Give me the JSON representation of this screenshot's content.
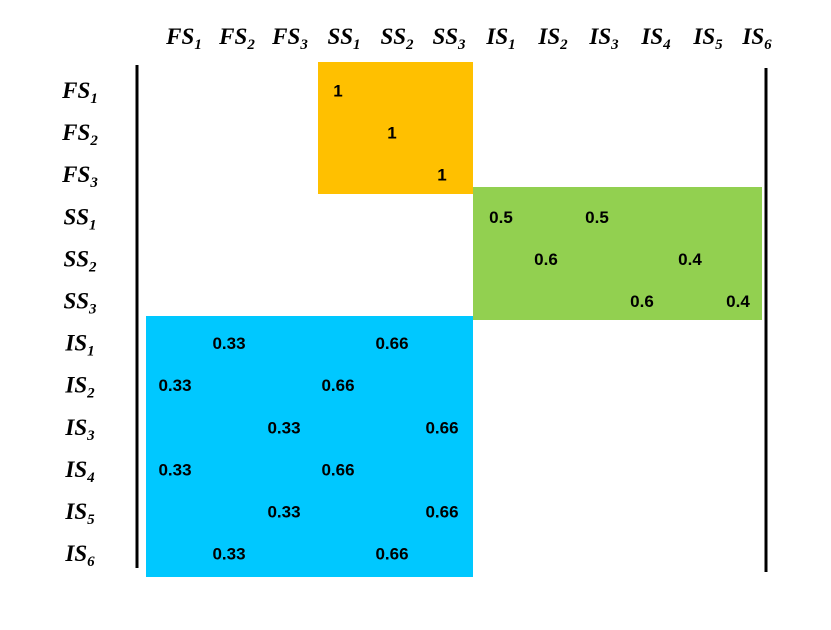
{
  "column_labels": [
    {
      "name": "FS",
      "sub": "1"
    },
    {
      "name": "FS",
      "sub": "2"
    },
    {
      "name": "FS",
      "sub": "3"
    },
    {
      "name": "SS",
      "sub": "1"
    },
    {
      "name": "SS",
      "sub": "2"
    },
    {
      "name": "SS",
      "sub": "3"
    },
    {
      "name": "IS",
      "sub": "1"
    },
    {
      "name": "IS",
      "sub": "2"
    },
    {
      "name": "IS",
      "sub": "3"
    },
    {
      "name": "IS",
      "sub": "4"
    },
    {
      "name": "IS",
      "sub": "5"
    },
    {
      "name": "IS",
      "sub": "6"
    }
  ],
  "row_labels": [
    {
      "name": "FS",
      "sub": "1"
    },
    {
      "name": "FS",
      "sub": "2"
    },
    {
      "name": "FS",
      "sub": "3"
    },
    {
      "name": "SS",
      "sub": "1"
    },
    {
      "name": "SS",
      "sub": "2"
    },
    {
      "name": "SS",
      "sub": "3"
    },
    {
      "name": "IS",
      "sub": "1"
    },
    {
      "name": "IS",
      "sub": "2"
    },
    {
      "name": "IS",
      "sub": "3"
    },
    {
      "name": "IS",
      "sub": "4"
    },
    {
      "name": "IS",
      "sub": "5"
    },
    {
      "name": "IS",
      "sub": "6"
    }
  ],
  "matrix": [
    [
      null,
      null,
      null,
      1,
      null,
      null,
      null,
      null,
      null,
      null,
      null,
      null
    ],
    [
      null,
      null,
      null,
      null,
      1,
      null,
      null,
      null,
      null,
      null,
      null,
      null
    ],
    [
      null,
      null,
      null,
      null,
      null,
      1,
      null,
      null,
      null,
      null,
      null,
      null
    ],
    [
      null,
      null,
      null,
      null,
      null,
      null,
      0.5,
      null,
      0.5,
      null,
      null,
      null
    ],
    [
      null,
      null,
      null,
      null,
      null,
      null,
      null,
      0.6,
      null,
      null,
      0.4,
      null
    ],
    [
      null,
      null,
      null,
      null,
      null,
      null,
      null,
      null,
      null,
      0.6,
      null,
      0.4
    ],
    [
      null,
      0.33,
      null,
      null,
      0.66,
      null,
      null,
      null,
      null,
      null,
      null,
      null
    ],
    [
      0.33,
      null,
      null,
      0.66,
      null,
      null,
      null,
      null,
      null,
      null,
      null,
      null
    ],
    [
      null,
      null,
      0.33,
      null,
      null,
      0.66,
      null,
      null,
      null,
      null,
      null,
      null
    ],
    [
      0.33,
      null,
      null,
      0.66,
      null,
      null,
      null,
      null,
      null,
      null,
      null,
      null
    ],
    [
      null,
      null,
      0.33,
      null,
      null,
      0.66,
      null,
      null,
      null,
      null,
      null,
      null
    ],
    [
      null,
      0.33,
      null,
      null,
      0.66,
      null,
      null,
      null,
      null,
      null,
      null,
      null
    ]
  ]
}
